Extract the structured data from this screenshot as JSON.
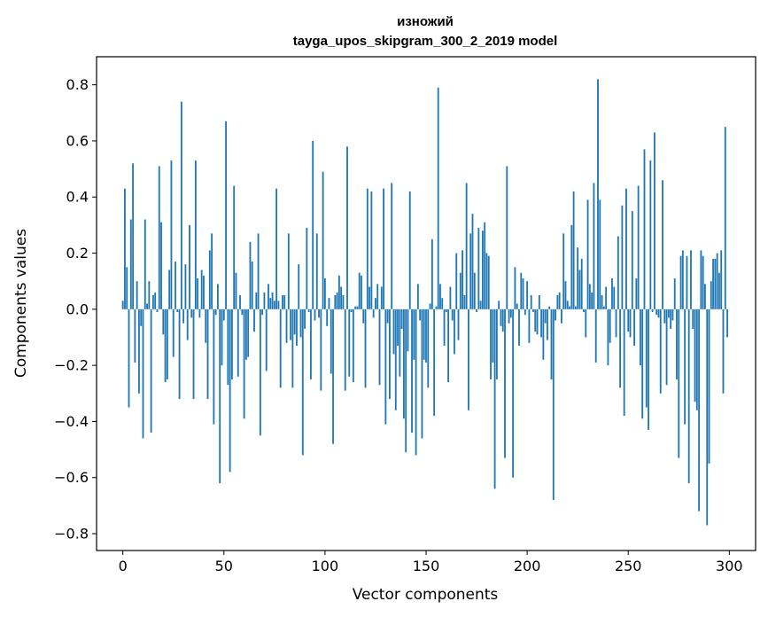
{
  "chart_data": {
    "type": "bar",
    "title": "изножий",
    "subtitle": "tayga_upos_skipgram_300_2_2019 model",
    "xlabel": "Vector components",
    "ylabel": "Components values",
    "xlim": [
      -13,
      313
    ],
    "ylim": [
      -0.86,
      0.9
    ],
    "xticks": [
      0,
      50,
      100,
      150,
      200,
      250,
      300
    ],
    "xtick_labels": [
      "0",
      "50",
      "100",
      "150",
      "200",
      "250",
      "300"
    ],
    "yticks": [
      0.8,
      0.6,
      0.4,
      0.2,
      0.0,
      -0.2,
      -0.4,
      -0.6,
      -0.8
    ],
    "ytick_labels": [
      "0.8",
      "0.6",
      "0.4",
      "0.2",
      "0.0",
      "−0.2",
      "−0.4",
      "−0.6",
      "−0.8"
    ],
    "bar_color": "#1f77b4",
    "grid": false,
    "x": "0..299",
    "values": [
      0.03,
      0.43,
      0.15,
      -0.35,
      0.32,
      0.52,
      -0.19,
      0.1,
      -0.3,
      -0.06,
      -0.46,
      0.32,
      0.02,
      0.1,
      -0.44,
      0.05,
      0.06,
      -0.01,
      0.51,
      0.31,
      -0.09,
      -0.26,
      -0.25,
      0.14,
      0.53,
      -0.17,
      0.17,
      -0.01,
      -0.32,
      0.74,
      -0.05,
      0.16,
      -0.11,
      0.3,
      -0.03,
      -0.32,
      0.53,
      0.11,
      -0.03,
      0.14,
      0.12,
      -0.12,
      -0.32,
      0.21,
      0.27,
      -0.41,
      -0.02,
      0.09,
      -0.62,
      -0.2,
      -0.04,
      0.67,
      -0.27,
      -0.58,
      -0.25,
      0.44,
      0.13,
      -0.24,
      0.05,
      -0.02,
      -0.39,
      -0.18,
      -0.17,
      0.24,
      0.17,
      -0.08,
      0.06,
      0.27,
      -0.45,
      -0.02,
      0.06,
      -0.22,
      0.09,
      0.04,
      0.06,
      0.03,
      0.43,
      0.03,
      -0.28,
      0.05,
      0.05,
      -0.12,
      0.27,
      -0.11,
      -0.28,
      -0.09,
      -0.13,
      0.16,
      -0.1,
      -0.52,
      -0.07,
      0.29,
      -0.01,
      -0.25,
      0.6,
      -0.04,
      0.27,
      -0.03,
      -0.29,
      0.49,
      0.11,
      -0.06,
      0.04,
      -0.23,
      -0.48,
      0.05,
      0.06,
      0.12,
      0.08,
      0.05,
      -0.29,
      0.58,
      -0.24,
      -0.01,
      -0.26,
      0.01,
      0.01,
      0.13,
      0.12,
      -0.05,
      -0.28,
      0.43,
      0.08,
      0.42,
      -0.03,
      0.04,
      0.09,
      -0.27,
      0.08,
      0.43,
      -0.41,
      -0.05,
      -0.32,
      0.45,
      -0.16,
      -0.36,
      -0.13,
      -0.24,
      -0.07,
      -0.39,
      -0.51,
      -0.15,
      0.42,
      -0.44,
      -0.18,
      -0.52,
      0.09,
      -0.04,
      -0.46,
      -0.18,
      -0.19,
      -0.28,
      0.02,
      0.25,
      -0.38,
      0.01,
      0.79,
      0.09,
      0.04,
      -0.13,
      -0.01,
      -0.26,
      0.08,
      -0.04,
      -0.16,
      0.2,
      -0.11,
      0.13,
      0.21,
      0.05,
      0.45,
      -0.36,
      0.27,
      0.34,
      0.13,
      -0.01,
      0.29,
      0.03,
      0.28,
      0.31,
      0.2,
      0.19,
      -0.25,
      -0.19,
      -0.64,
      -0.25,
      0.03,
      -0.06,
      -0.08,
      -0.53,
      0.51,
      -0.05,
      -0.03,
      -0.6,
      0.15,
      0.02,
      -0.13,
      0.13,
      0.11,
      -0.02,
      0.1,
      -0.12,
      0.05,
      -0.01,
      -0.08,
      -0.09,
      0.05,
      -0.1,
      -0.18,
      -0.05,
      -0.11,
      0.01,
      -0.25,
      -0.68,
      -0.04,
      0.05,
      0.06,
      -0.05,
      0.27,
      0.1,
      0.03,
      0.01,
      0.3,
      0.42,
      0.01,
      0.22,
      0.14,
      0.18,
      -0.01,
      -0.1,
      0.39,
      0.09,
      0.06,
      0.45,
      -0.19,
      0.82,
      0.39,
      0.05,
      0.01,
      0.08,
      -0.2,
      -0.12,
      0.11,
      0.08,
      -0.1,
      0.26,
      -0.28,
      0.37,
      -0.38,
      0.43,
      -0.08,
      -0.1,
      0.35,
      -0.13,
      0.11,
      0.44,
      -0.2,
      -0.39,
      0.57,
      -0.35,
      -0.43,
      0.53,
      -0.01,
      0.63,
      -0.02,
      -0.03,
      -0.3,
      0.46,
      -0.05,
      -0.27,
      -0.03,
      -0.07,
      -0.04,
      0.11,
      -0.25,
      -0.53,
      0.19,
      0.21,
      -0.41,
      0.19,
      -0.62,
      0.21,
      -0.07,
      -0.33,
      -0.36,
      -0.72,
      0.21,
      0.19,
      0.09,
      -0.77,
      -0.55,
      0.1,
      0.18,
      0.18,
      0.2,
      0.13,
      0.21,
      -0.3,
      0.65,
      -0.1
    ]
  }
}
